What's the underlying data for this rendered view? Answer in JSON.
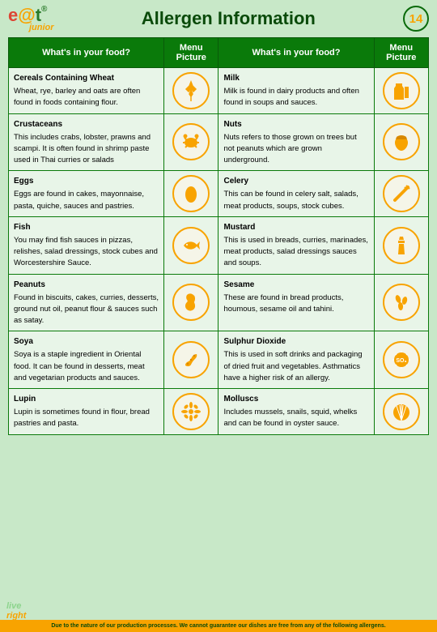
{
  "header": {
    "logo_e": "e",
    "logo_at": "@",
    "logo_t": "t",
    "logo_reg": "®",
    "logo_sub": "junior",
    "title": "Allergen Information",
    "badge": "14"
  },
  "columns": {
    "c1": "What's in your food?",
    "c2": "Menu Picture",
    "c3": "What's in your food?",
    "c4": "Menu Picture"
  },
  "rows": [
    {
      "lt": "Cereals Containing Wheat",
      "ld": "Wheat, rye, barley and oats are often found in foods containing flour.",
      "li": "wheat",
      "rt": "Milk",
      "rd": "Milk is found in dairy products and often found in soups and sauces.",
      "ri": "milk"
    },
    {
      "lt": "Crustaceans",
      "ld": "This includes crabs, lobster, prawns and scampi. It is often found in shrimp paste used in Thai curries or salads",
      "li": "crab",
      "rt": "Nuts",
      "rd": "Nuts refers to those grown on trees but not peanuts which are grown underground.",
      "ri": "nut"
    },
    {
      "lt": "Eggs",
      "ld": "Eggs are found in cakes, mayonnaise, pasta, quiche, sauces and pastries.",
      "li": "egg",
      "rt": "Celery",
      "rd": "This can be found in celery salt, salads, meat products, soups, stock cubes.",
      "ri": "celery"
    },
    {
      "lt": "Fish",
      "ld": "You may find fish sauces in pizzas, relishes, salad dressings, stock cubes and Worcestershire Sauce.",
      "li": "fish",
      "rt": "Mustard",
      "rd": "This is used in breads, curries, marinades, meat products, salad dressings sauces and soups.",
      "ri": "mustard"
    },
    {
      "lt": "Peanuts",
      "ld": "Found in biscuits, cakes, curries, desserts, ground nut oil, peanut flour & sauces such as satay.",
      "li": "peanut",
      "rt": "Sesame",
      "rd": "These are found in bread products, houmous, sesame oil and tahini.",
      "ri": "sesame"
    },
    {
      "lt": "Soya",
      "ld": "Soya is a staple ingredient in Oriental food.  It can be found in desserts, meat and vegetarian products and sauces.",
      "li": "soya",
      "rt": "Sulphur Dioxide",
      "rd": "This is used in soft drinks and packaging of dried fruit and vegetables.  Asthmatics have a higher risk of an allergy.",
      "ri": "so3"
    },
    {
      "lt": "Lupin",
      "ld": "Lupin is sometimes found in flour, bread pastries and pasta.",
      "li": "lupin",
      "rt": "Molluscs",
      "rd": "Includes mussels, snails, squid, whelks and can be found in oyster sauce.",
      "ri": "mollusc"
    }
  ],
  "footer": {
    "logo_live": "live",
    "logo_right": "right",
    "disclaimer": "Due to the nature of our production processes. We cannot guarantee our dishes are free from any of the following allergens."
  },
  "colors": {
    "icon_fill": "#f8a300",
    "icon_stroke": "#f8a300"
  }
}
